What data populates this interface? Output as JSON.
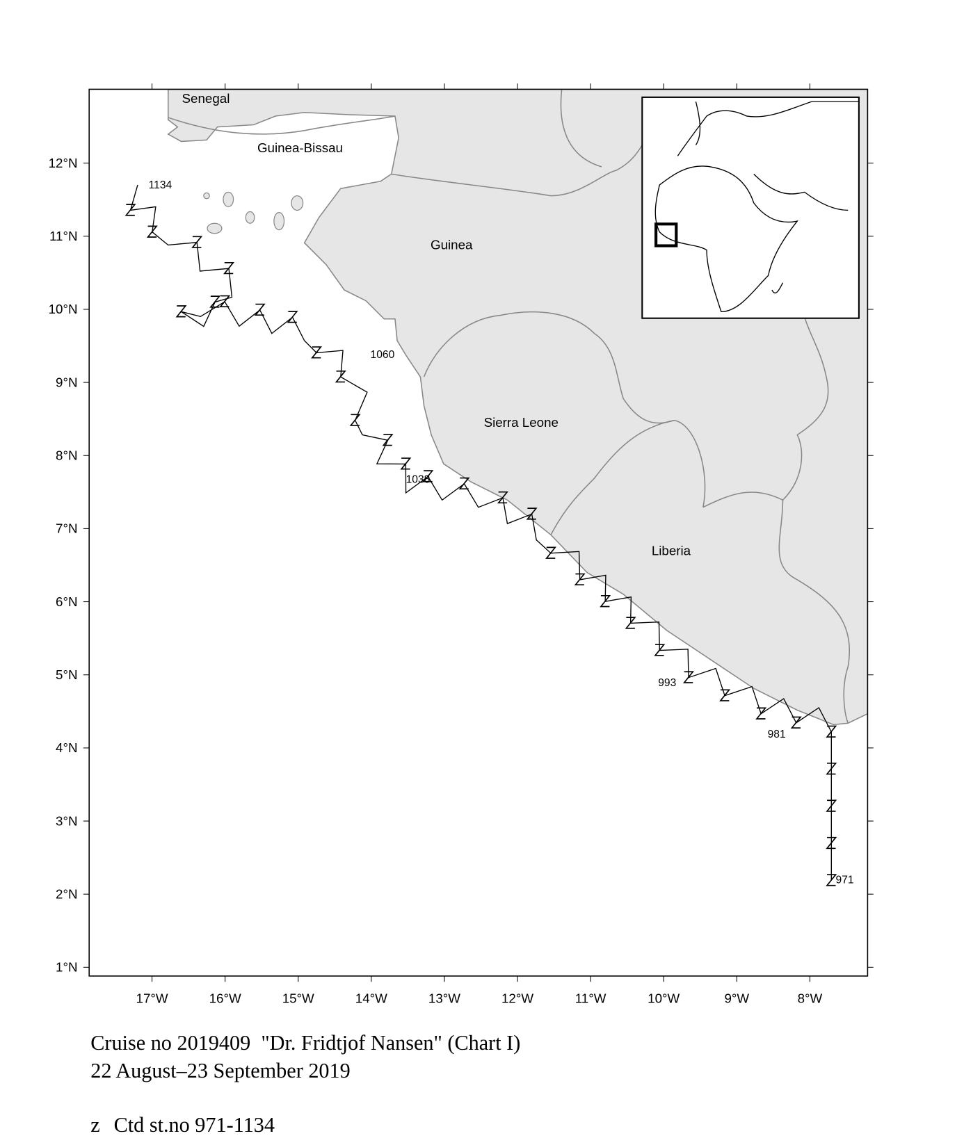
{
  "map": {
    "xlim": [
      -17.86,
      -7.21
    ],
    "ylim": [
      0.88,
      13.01
    ],
    "x_ticks": [
      {
        "value": -17,
        "label": "17°W"
      },
      {
        "value": -16,
        "label": "16°W"
      },
      {
        "value": -15,
        "label": "15°W"
      },
      {
        "value": -14,
        "label": "14°W"
      },
      {
        "value": -13,
        "label": "13°W"
      },
      {
        "value": -12,
        "label": "12°W"
      },
      {
        "value": -11,
        "label": "11°W"
      },
      {
        "value": -10,
        "label": "10°W"
      },
      {
        "value": -9,
        "label": "9°W"
      },
      {
        "value": -8,
        "label": "8°W"
      }
    ],
    "y_ticks": [
      {
        "value": 12,
        "label": "12°N"
      },
      {
        "value": 11,
        "label": "11°N"
      },
      {
        "value": 10,
        "label": "10°N"
      },
      {
        "value": 9,
        "label": "9°N"
      },
      {
        "value": 8,
        "label": "8°N"
      },
      {
        "value": 7,
        "label": "7°N"
      },
      {
        "value": 6,
        "label": "6°N"
      },
      {
        "value": 5,
        "label": "5°N"
      },
      {
        "value": 4,
        "label": "4°N"
      },
      {
        "value": 3,
        "label": "3°N"
      },
      {
        "value": 2,
        "label": "2°N"
      },
      {
        "value": 1,
        "label": "1°N"
      }
    ],
    "countries": [
      "Senegal",
      "Guinea-Bissau",
      "Guinea",
      "Sierra Leone",
      "Liberia"
    ],
    "station_labels": [
      "1134",
      "1060",
      "1038",
      "993",
      "981",
      "971"
    ]
  },
  "caption": {
    "line1": "Cruise no 2019409  \"Dr. Fridtjof Nansen\" (Chart I)",
    "line2": "22 August–23 September 2019"
  },
  "legend": {
    "symbol": "z",
    "text": "Ctd st.no 971-1134"
  }
}
